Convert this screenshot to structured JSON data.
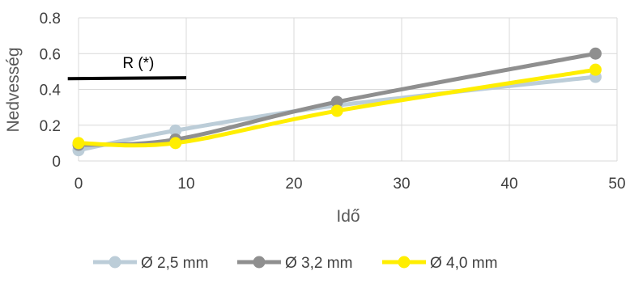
{
  "chart_data": {
    "type": "line",
    "xlabel": "Idő",
    "ylabel": "Nedvesség",
    "xlim": [
      0,
      50
    ],
    "ylim": [
      0,
      0.8
    ],
    "xticks": [
      "0",
      "10",
      "20",
      "30",
      "40",
      "50"
    ],
    "yticks": [
      "0",
      "0.2",
      "0.4",
      "0.6",
      "0.8"
    ],
    "grid": true,
    "legend_position": "bottom",
    "series": [
      {
        "name": "Ø 2,5 mm",
        "color": "#bccdd8",
        "x": [
          0,
          9,
          24,
          48
        ],
        "y": [
          0.06,
          0.17,
          0.31,
          0.47
        ]
      },
      {
        "name": "Ø 3,2 mm",
        "color": "#8f8f8f",
        "x": [
          0,
          9,
          24,
          48
        ],
        "y": [
          0.09,
          0.12,
          0.33,
          0.6
        ]
      },
      {
        "name": "Ø 4,0 mm",
        "color": "#ffee00",
        "x": [
          0,
          9,
          24,
          48
        ],
        "y": [
          0.1,
          0.1,
          0.28,
          0.51
        ]
      }
    ],
    "annotation": {
      "label": "R (*)",
      "x": [
        -1,
        10
      ],
      "y": [
        0.46,
        0.465
      ],
      "color": "#000000"
    }
  }
}
